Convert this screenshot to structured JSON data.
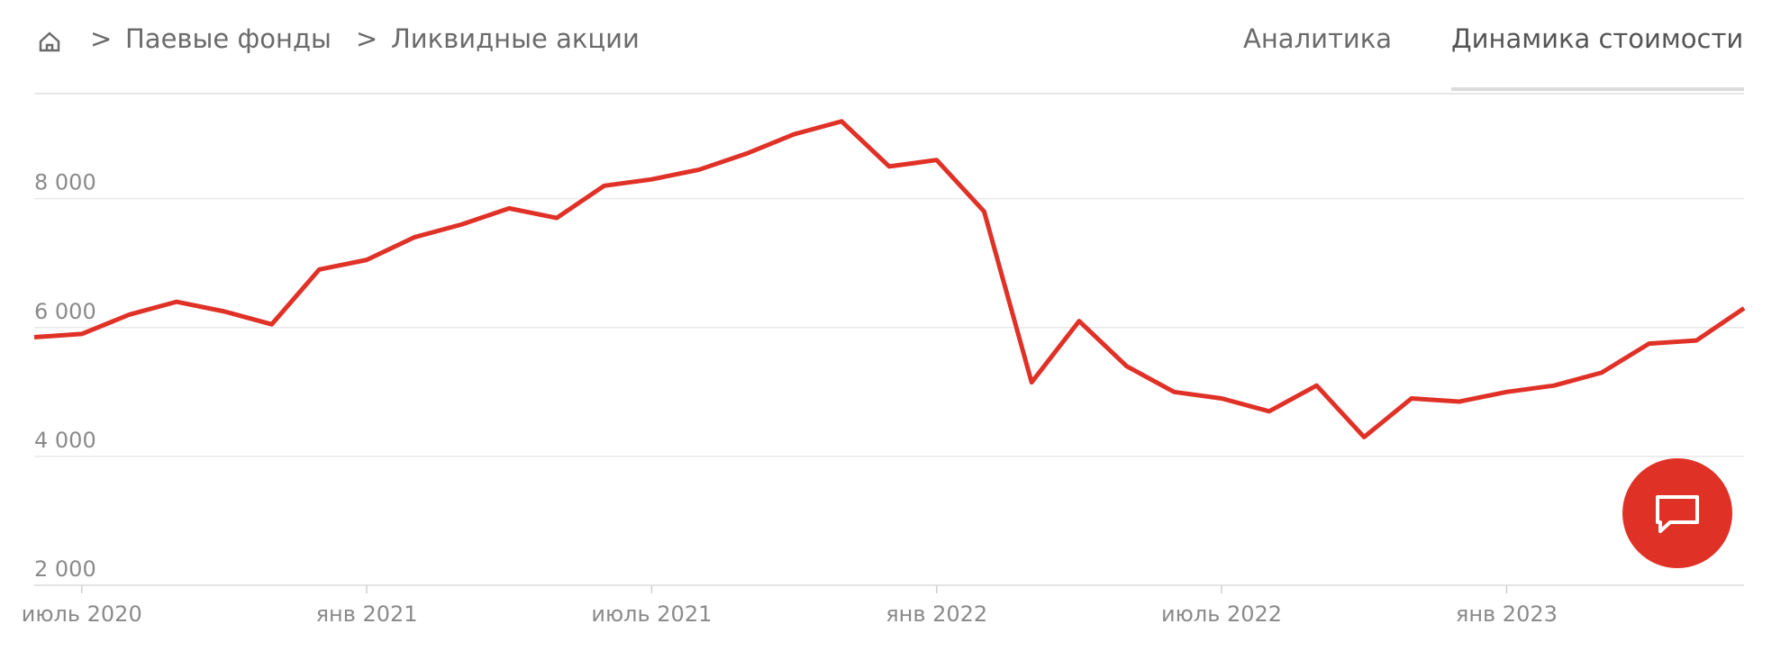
{
  "breadcrumbs": [
    "Паевые фонды",
    "Ликвидные акции"
  ],
  "tabs": [
    "Аналитика",
    "Динамика стоимости"
  ],
  "chart_data": {
    "type": "line",
    "x": [
      "2020-06",
      "2020-07",
      "2020-08",
      "2020-09",
      "2020-10",
      "2020-11",
      "2020-12",
      "2021-01",
      "2021-02",
      "2021-03",
      "2021-04",
      "2021-05",
      "2021-06",
      "2021-07",
      "2021-08",
      "2021-09",
      "2021-10",
      "2021-11",
      "2021-12",
      "2022-01",
      "2022-02",
      "2022-03",
      "2022-04",
      "2022-05",
      "2022-06",
      "2022-07",
      "2022-08",
      "2022-09",
      "2022-10",
      "2022-11",
      "2022-12",
      "2023-01",
      "2023-02",
      "2023-03",
      "2023-04",
      "2023-05",
      "2023-06"
    ],
    "series": [
      {
        "color": "#e03127",
        "values": [
          5850,
          5900,
          6200,
          6400,
          6250,
          6050,
          6900,
          7050,
          7400,
          7600,
          7850,
          7700,
          8200,
          8300,
          8450,
          8700,
          9000,
          9200,
          8500,
          8600,
          7800,
          5150,
          6100,
          5400,
          5000,
          4900,
          4700,
          5100,
          4300,
          4900,
          4850,
          5000,
          5100,
          5300,
          5750,
          5800,
          6300
        ]
      }
    ],
    "xlim": [
      "2020-06",
      "2023-06"
    ],
    "xticks": [
      {
        "value": "2020-07",
        "label": "июль 2020"
      },
      {
        "value": "2021-01",
        "label": "янв 2021"
      },
      {
        "value": "2021-07",
        "label": "июль 2021"
      },
      {
        "value": "2022-01",
        "label": "янв 2022"
      },
      {
        "value": "2022-07",
        "label": "июль 2022"
      },
      {
        "value": "2023-01",
        "label": "янв 2023"
      }
    ],
    "ylim": [
      2000,
      9630
    ],
    "yticks": [
      {
        "value": 2000,
        "label": "2 000"
      },
      {
        "value": 4000,
        "label": "4 000"
      },
      {
        "value": 6000,
        "label": "6 000"
      },
      {
        "value": 8000,
        "label": "8 000"
      }
    ],
    "grid": true
  }
}
